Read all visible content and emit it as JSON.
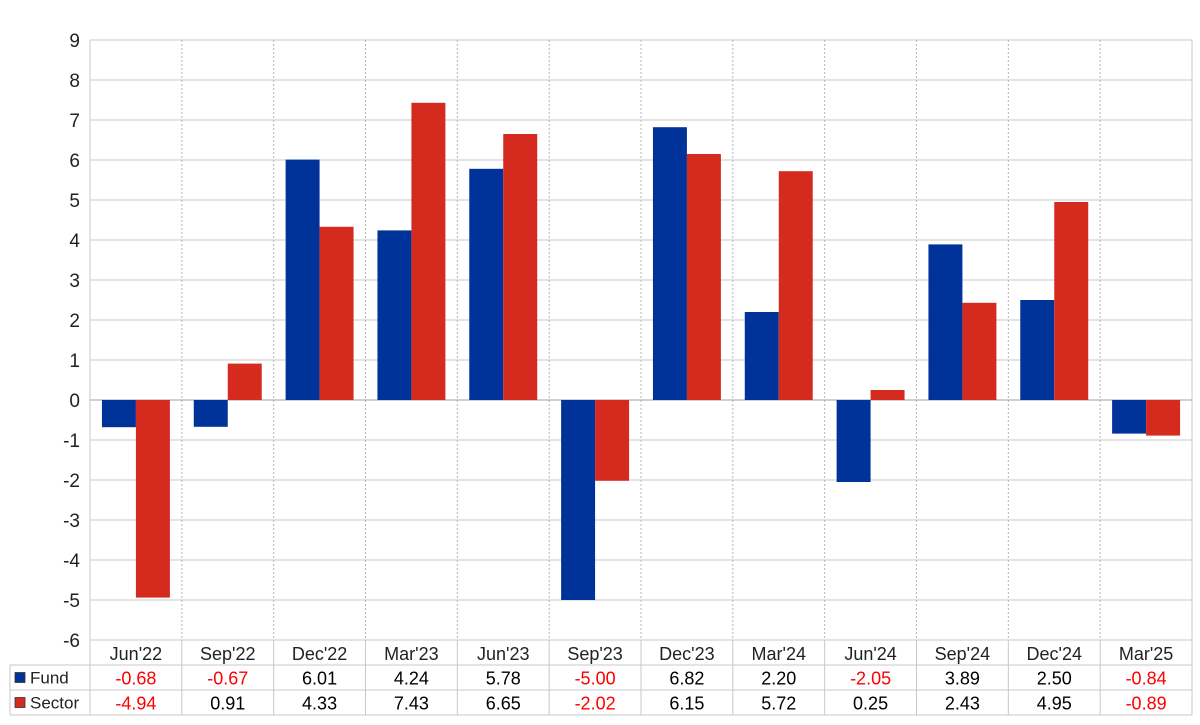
{
  "chart_data": {
    "type": "bar",
    "title": "",
    "xlabel": "",
    "ylabel": "",
    "ylim": [
      -6,
      9
    ],
    "yticks": [
      9,
      8,
      7,
      6,
      5,
      4,
      3,
      2,
      1,
      0,
      -1,
      -2,
      -3,
      -4,
      -5,
      -6
    ],
    "grid": true,
    "categories": [
      "Jun'22",
      "Sep'22",
      "Dec'22",
      "Mar'23",
      "Jun'23",
      "Sep'23",
      "Dec'23",
      "Mar'24",
      "Jun'24",
      "Sep'24",
      "Dec'24",
      "Mar'25"
    ],
    "series": [
      {
        "name": "Fund",
        "color": "#003399",
        "values": [
          -0.68,
          -0.67,
          6.01,
          4.24,
          5.78,
          -5.0,
          6.82,
          2.2,
          -2.05,
          3.89,
          2.5,
          -0.84
        ],
        "labels": [
          "-0.68",
          "-0.67",
          "6.01",
          "4.24",
          "5.78",
          "-5.00",
          "6.82",
          "2.20",
          "-2.05",
          "3.89",
          "2.50",
          "-0.84"
        ]
      },
      {
        "name": "Sector",
        "color": "#d52b1e",
        "values": [
          -4.94,
          0.91,
          4.33,
          7.43,
          6.65,
          -2.02,
          6.15,
          5.72,
          0.25,
          2.43,
          4.95,
          -0.89
        ],
        "labels": [
          "-4.94",
          "0.91",
          "4.33",
          "7.43",
          "6.65",
          "-2.02",
          "6.15",
          "5.72",
          "0.25",
          "2.43",
          "4.95",
          "-0.89"
        ]
      }
    ],
    "table": {
      "negative_color": "#ff0000",
      "positive_color": "#000000"
    }
  }
}
